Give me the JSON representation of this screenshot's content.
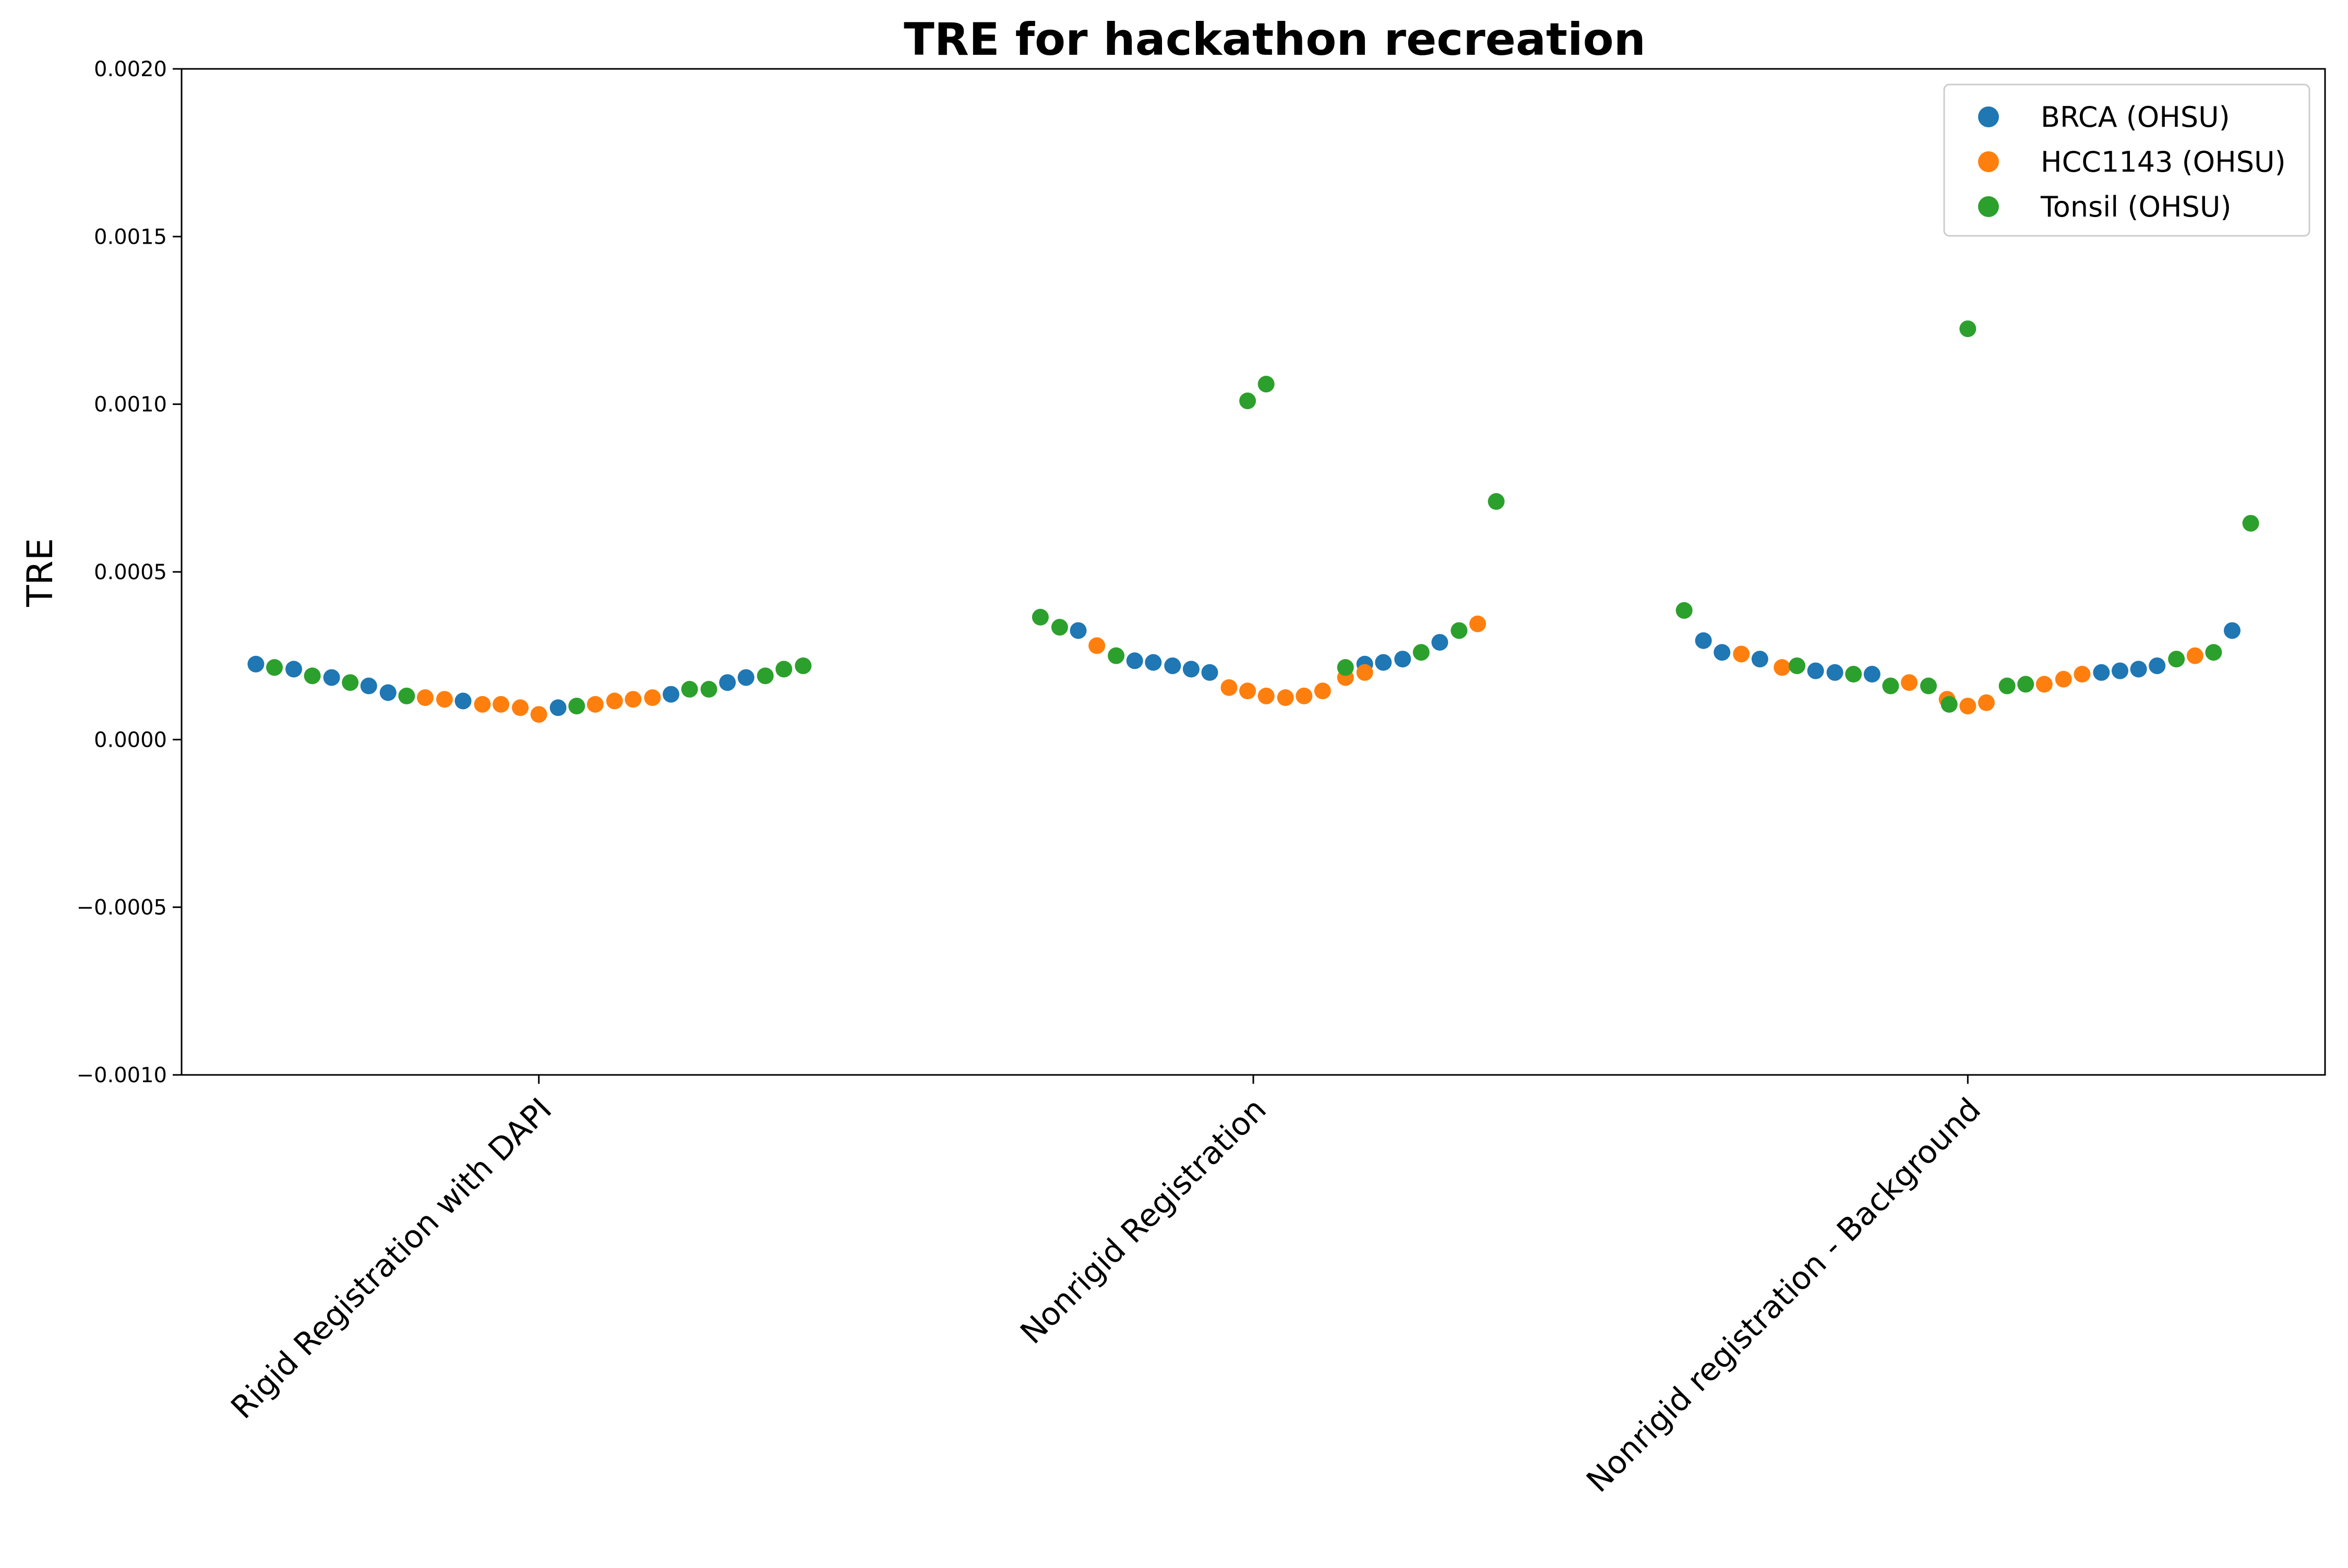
{
  "chart_data": {
    "type": "scatter",
    "title": "TRE for hackathon recreation",
    "xlabel": "",
    "ylabel": "TRE",
    "ylim": [
      -0.001,
      0.002
    ],
    "yticks": [
      -0.001,
      -0.0005,
      0.0,
      0.0005,
      0.001,
      0.0015,
      0.002
    ],
    "ytick_labels": [
      "−0.0010",
      "−0.0005",
      "0.0000",
      "0.0005",
      "0.0010",
      "0.0015",
      "0.0020"
    ],
    "categories": [
      "Rigid Registration with DAPI",
      "Nonrigid Registration",
      "Nonrigid registration - Background"
    ],
    "legend_position": "top-right",
    "grid": false,
    "series": [
      {
        "name": "BRCA (OHSU)",
        "color": "#1f77b4",
        "points": [
          {
            "x": -0.396,
            "y": 0.000225
          },
          {
            "x": -0.343,
            "y": 0.00021
          },
          {
            "x": -0.29,
            "y": 0.000185
          },
          {
            "x": -0.238,
            "y": 0.00016
          },
          {
            "x": -0.211,
            "y": 0.00014
          },
          {
            "x": -0.106,
            "y": 0.000115
          },
          {
            "x": 0.027,
            "y": 9.5e-05
          },
          {
            "x": 0.185,
            "y": 0.000135
          },
          {
            "x": 0.264,
            "y": 0.00017
          },
          {
            "x": 0.29,
            "y": 0.000185
          },
          {
            "x": 0.755,
            "y": 0.000325
          },
          {
            "x": 0.834,
            "y": 0.000235
          },
          {
            "x": 0.86,
            "y": 0.00023
          },
          {
            "x": 0.887,
            "y": 0.00022
          },
          {
            "x": 0.913,
            "y": 0.00021
          },
          {
            "x": 0.939,
            "y": 0.0002
          },
          {
            "x": 1.156,
            "y": 0.000225
          },
          {
            "x": 1.182,
            "y": 0.00023
          },
          {
            "x": 1.209,
            "y": 0.00024
          },
          {
            "x": 1.261,
            "y": 0.00029
          },
          {
            "x": 1.63,
            "y": 0.000295
          },
          {
            "x": 1.656,
            "y": 0.00026
          },
          {
            "x": 1.709,
            "y": 0.00024
          },
          {
            "x": 1.787,
            "y": 0.000205
          },
          {
            "x": 1.814,
            "y": 0.0002
          },
          {
            "x": 1.866,
            "y": 0.000195
          },
          {
            "x": 2.187,
            "y": 0.0002
          },
          {
            "x": 2.213,
            "y": 0.000205
          },
          {
            "x": 2.239,
            "y": 0.00021
          },
          {
            "x": 2.265,
            "y": 0.00022
          },
          {
            "x": 2.37,
            "y": 0.000325
          }
        ]
      },
      {
        "name": "HCC1143 (OHSU)",
        "color": "#ff7f0e",
        "points": [
          {
            "x": -0.159,
            "y": 0.000125
          },
          {
            "x": -0.132,
            "y": 0.00012
          },
          {
            "x": -0.079,
            "y": 0.000105
          },
          {
            "x": -0.053,
            "y": 0.000105
          },
          {
            "x": -0.026,
            "y": 9.5e-05
          },
          {
            "x": 0.0,
            "y": 7.5e-05
          },
          {
            "x": 0.079,
            "y": 0.000105
          },
          {
            "x": 0.106,
            "y": 0.000115
          },
          {
            "x": 0.132,
            "y": 0.00012
          },
          {
            "x": 0.159,
            "y": 0.000125
          },
          {
            "x": 0.781,
            "y": 0.00028
          },
          {
            "x": 0.966,
            "y": 0.000155
          },
          {
            "x": 0.992,
            "y": 0.000145
          },
          {
            "x": 1.018,
            "y": 0.00013
          },
          {
            "x": 1.045,
            "y": 0.000125
          },
          {
            "x": 1.071,
            "y": 0.00013
          },
          {
            "x": 1.097,
            "y": 0.000145
          },
          {
            "x": 1.129,
            "y": 0.000185
          },
          {
            "x": 1.156,
            "y": 0.0002
          },
          {
            "x": 1.314,
            "y": 0.000345
          },
          {
            "x": 1.683,
            "y": 0.000255
          },
          {
            "x": 1.74,
            "y": 0.000215
          },
          {
            "x": 1.918,
            "y": 0.00017
          },
          {
            "x": 1.971,
            "y": 0.00012
          },
          {
            "x": 2.0,
            "y": 0.0001
          },
          {
            "x": 2.026,
            "y": 0.00011
          },
          {
            "x": 2.107,
            "y": 0.000165
          },
          {
            "x": 2.134,
            "y": 0.00018
          },
          {
            "x": 2.16,
            "y": 0.000195
          },
          {
            "x": 2.318,
            "y": 0.00025
          }
        ]
      },
      {
        "name": "Tonsil (OHSU)",
        "color": "#2ca02c",
        "points": [
          {
            "x": -0.37,
            "y": 0.000215
          },
          {
            "x": -0.317,
            "y": 0.00019
          },
          {
            "x": -0.264,
            "y": 0.00017
          },
          {
            "x": -0.185,
            "y": 0.00013
          },
          {
            "x": 0.053,
            "y": 0.0001
          },
          {
            "x": 0.211,
            "y": 0.00015
          },
          {
            "x": 0.238,
            "y": 0.00015
          },
          {
            "x": 0.317,
            "y": 0.00019
          },
          {
            "x": 0.343,
            "y": 0.00021
          },
          {
            "x": 0.37,
            "y": 0.00022
          },
          {
            "x": 0.702,
            "y": 0.000365
          },
          {
            "x": 0.729,
            "y": 0.000335
          },
          {
            "x": 0.808,
            "y": 0.00025
          },
          {
            "x": 0.992,
            "y": 0.00101
          },
          {
            "x": 1.018,
            "y": 0.00106
          },
          {
            "x": 1.129,
            "y": 0.000215
          },
          {
            "x": 1.235,
            "y": 0.00026
          },
          {
            "x": 1.288,
            "y": 0.000325
          },
          {
            "x": 1.34,
            "y": 0.00071
          },
          {
            "x": 1.603,
            "y": 0.000385
          },
          {
            "x": 1.761,
            "y": 0.00022
          },
          {
            "x": 1.84,
            "y": 0.000195
          },
          {
            "x": 1.892,
            "y": 0.00016
          },
          {
            "x": 1.945,
            "y": 0.00016
          },
          {
            "x": 1.974,
            "y": 0.000105
          },
          {
            "x": 2.0,
            "y": 0.001225
          },
          {
            "x": 2.055,
            "y": 0.00016
          },
          {
            "x": 2.081,
            "y": 0.000165
          },
          {
            "x": 2.292,
            "y": 0.00024
          },
          {
            "x": 2.344,
            "y": 0.00026
          },
          {
            "x": 2.396,
            "y": 0.000645
          }
        ]
      }
    ]
  }
}
